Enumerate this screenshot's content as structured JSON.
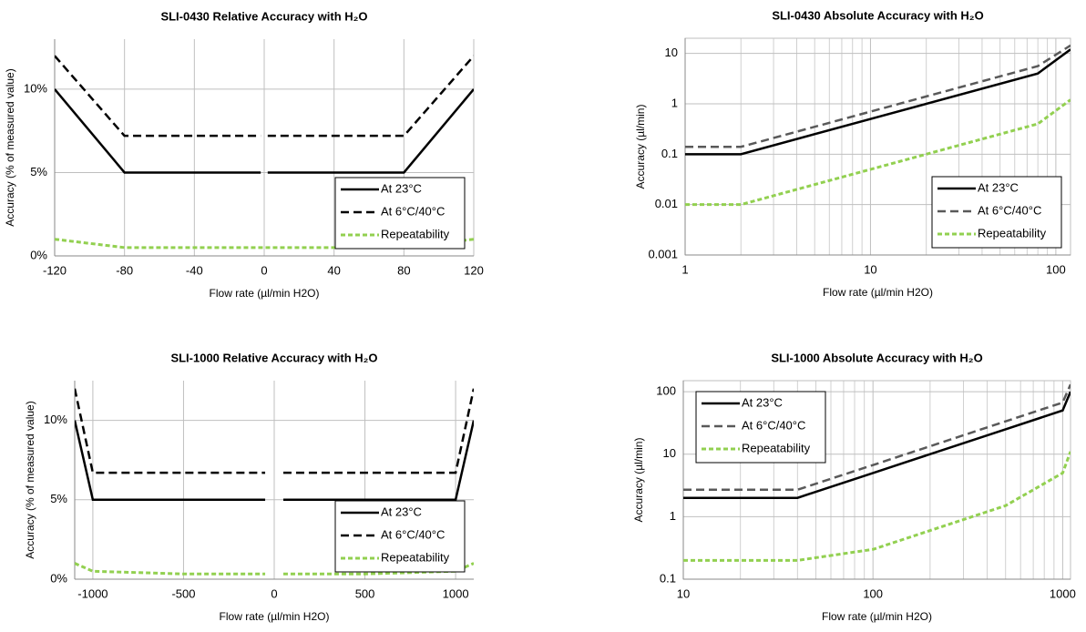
{
  "chart_data": [
    {
      "type": "line",
      "title": "SLI-0430 Relative Accuracy with H₂O",
      "x_label": "Flow rate (µl/min H2O)",
      "y_label": "Accuracy (% of measured value)",
      "x": [
        -120,
        -80,
        -2,
        0,
        2,
        80,
        120
      ],
      "series": [
        {
          "name": "At 23°C",
          "color": "#000000",
          "line_style": "solid",
          "values": [
            10,
            5,
            5,
            null,
            5,
            5,
            10
          ]
        },
        {
          "name": "At 6°C/40°C",
          "color": "#000000",
          "line_style": "dashed",
          "values": [
            12,
            7.2,
            7.2,
            null,
            7.2,
            7.2,
            12
          ]
        },
        {
          "name": "Repeatability",
          "color": "#92d050",
          "line_style": "dotted",
          "values": [
            1,
            0.5,
            0.5,
            0.5,
            0.5,
            0.5,
            1
          ]
        }
      ],
      "xlim": [
        -120,
        120
      ],
      "xticks": [
        -120,
        -80,
        -40,
        0,
        40,
        80,
        120
      ],
      "ylim": [
        0,
        13
      ],
      "yticks": [
        {
          "value": 0,
          "label": "0%"
        },
        {
          "value": 5,
          "label": "5%"
        },
        {
          "value": 10,
          "label": "10%"
        }
      ],
      "log_x": false,
      "log_y": false,
      "grid": true,
      "legend": "lower right"
    },
    {
      "type": "line",
      "title": "SLI-0430 Absolute Accuracy with H₂O",
      "x_label": "Flow rate (µl/min H2O)",
      "y_label": "Accuracy (µl/min)",
      "x": [
        1,
        2,
        80,
        120
      ],
      "series": [
        {
          "name": "At 23°C",
          "color": "#000000",
          "line_style": "solid",
          "values": [
            0.1,
            0.1,
            4,
            12
          ]
        },
        {
          "name": "At 6°C/40°C",
          "color": "#595959",
          "line_style": "dashed",
          "values": [
            0.14,
            0.14,
            5.6,
            14.4
          ]
        },
        {
          "name": "Repeatability",
          "color": "#92d050",
          "line_style": "dotted",
          "values": [
            0.01,
            0.01,
            0.4,
            1.2
          ]
        }
      ],
      "xlim": [
        1,
        120
      ],
      "xticks": [
        1,
        10,
        100
      ],
      "ylim": [
        0.001,
        20
      ],
      "yticks": [
        0.001,
        0.01,
        0.1,
        1,
        10
      ],
      "log_x": true,
      "log_y": true,
      "grid": true,
      "legend": "lower right"
    },
    {
      "type": "line",
      "title": "SLI-1000 Relative Accuracy with H₂O",
      "x_label": "Flow rate (µl/min H2O)",
      "y_label": "Accuracy (% of measured value)",
      "x": [
        -1100,
        -1000,
        -500,
        -50,
        0,
        50,
        500,
        1000,
        1100
      ],
      "series": [
        {
          "name": "At 23°C",
          "color": "#000000",
          "line_style": "solid",
          "values": [
            10,
            5,
            5,
            5,
            null,
            5,
            5,
            5,
            10
          ]
        },
        {
          "name": "At 6°C/40°C",
          "color": "#000000",
          "line_style": "dashed",
          "values": [
            12,
            6.7,
            6.7,
            6.7,
            null,
            6.7,
            6.7,
            6.7,
            12
          ]
        },
        {
          "name": "Repeatability",
          "color": "#92d050",
          "line_style": "dotted",
          "values": [
            1,
            0.5,
            0.33,
            0.33,
            null,
            0.33,
            0.33,
            0.5,
            1
          ]
        }
      ],
      "xlim": [
        -1100,
        1100
      ],
      "xticks": [
        -1000,
        -500,
        0,
        500,
        1000
      ],
      "ylim": [
        0,
        12.5
      ],
      "yticks": [
        {
          "value": 0,
          "label": "0%"
        },
        {
          "value": 5,
          "label": "5%"
        },
        {
          "value": 10,
          "label": "10%"
        }
      ],
      "log_x": false,
      "log_y": false,
      "grid": true,
      "legend": "lower right"
    },
    {
      "type": "line",
      "title": "SLI-1000 Absolute Accuracy with H₂O",
      "x_label": "Flow rate (µl/min H2O)",
      "y_label": "Accuracy (µl/min)",
      "x": [
        10,
        40,
        100,
        500,
        1000,
        1100
      ],
      "series": [
        {
          "name": "At 23°C",
          "color": "#000000",
          "line_style": "solid",
          "values": [
            2,
            2,
            5,
            25,
            50,
            100
          ]
        },
        {
          "name": "At 6°C/40°C",
          "color": "#595959",
          "line_style": "dashed",
          "values": [
            2.7,
            2.7,
            6.7,
            33.5,
            67,
            130
          ]
        },
        {
          "name": "Repeatability",
          "color": "#92d050",
          "line_style": "dotted",
          "values": [
            0.2,
            0.2,
            0.3,
            1.5,
            5,
            11
          ]
        }
      ],
      "xlim": [
        10,
        1100
      ],
      "xticks": [
        10,
        100,
        1000
      ],
      "ylim": [
        0.1,
        150
      ],
      "yticks": [
        0.1,
        1,
        10,
        100
      ],
      "log_x": true,
      "log_y": true,
      "grid": true,
      "legend": "upper left"
    }
  ]
}
